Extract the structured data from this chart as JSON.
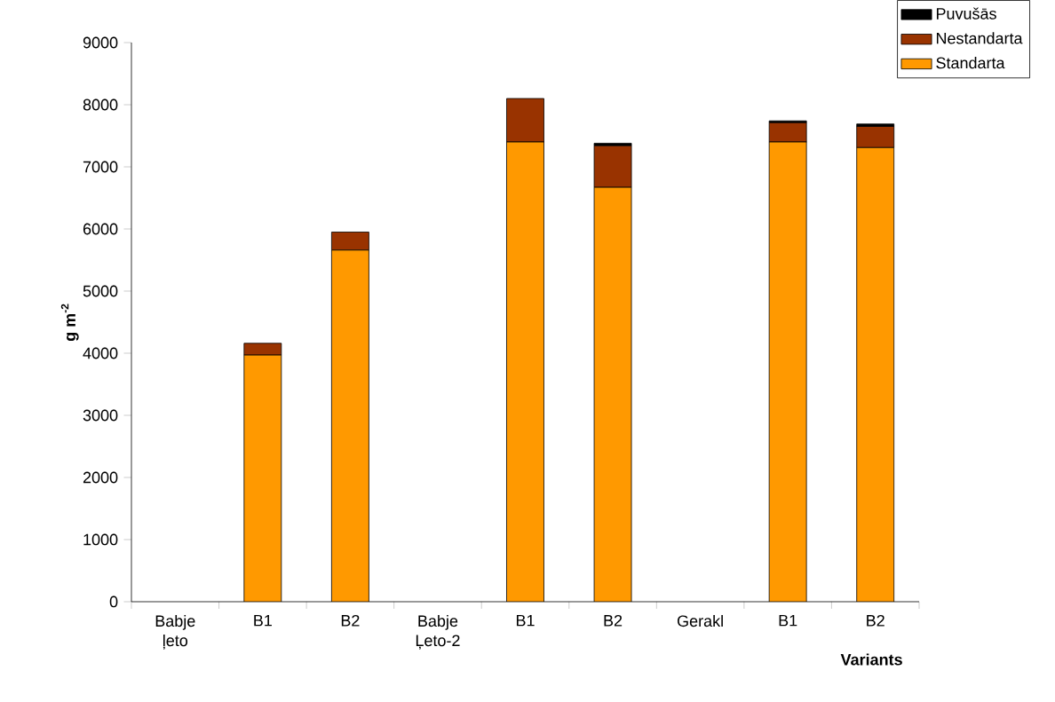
{
  "chart_data": {
    "type": "bar",
    "stacked": true,
    "xlabel": "Variants",
    "ylabel": "**g m$^{-2}$**",
    "categories": [
      "Babje ļeto",
      "B1",
      "B2",
      "Babje Ļeto-2",
      "B1",
      "B2",
      "Gerakl",
      "B1",
      "B2"
    ],
    "series": [
      {
        "name": "Standarta",
        "color": "#ff9900",
        "values": [
          null,
          3970,
          5660,
          null,
          7400,
          6670,
          null,
          7400,
          7310
        ]
      },
      {
        "name": "Nestandarta",
        "color": "#993300",
        "values": [
          null,
          190,
          290,
          null,
          700,
          670,
          null,
          310,
          340
        ]
      },
      {
        "name": "Puvušās",
        "color": "#000000",
        "values": [
          null,
          0,
          0,
          null,
          0,
          40,
          null,
          30,
          40
        ]
      }
    ],
    "ylim": [
      0,
      9000
    ],
    "yticks": [
      0,
      1000,
      2000,
      3000,
      4000,
      5000,
      6000,
      7000,
      8000,
      9000
    ],
    "legend": "top right"
  }
}
